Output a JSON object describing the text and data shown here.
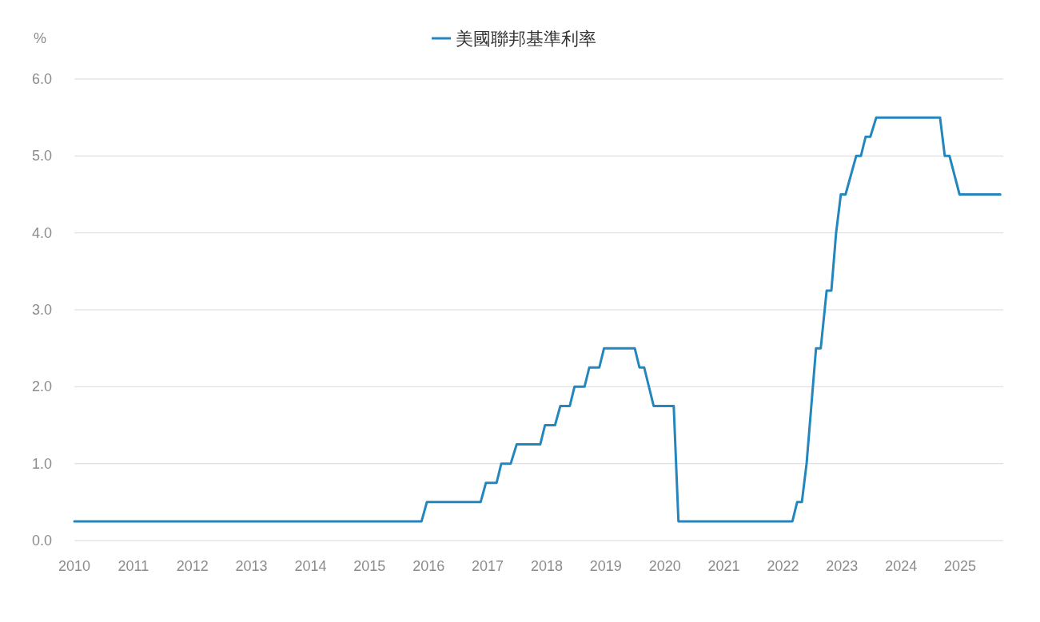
{
  "chart_data": {
    "type": "line",
    "ylabel": "%",
    "legend": "top",
    "grid": "y",
    "line_style": "solid",
    "xlim": [
      2010,
      2025.73
    ],
    "xticks": [
      2010,
      2011,
      2012,
      2013,
      2014,
      2015,
      2016,
      2017,
      2018,
      2019,
      2020,
      2021,
      2022,
      2023,
      2024,
      2025
    ],
    "ylim": [
      0,
      6
    ],
    "yticks": [
      {
        "value": 0,
        "label": "0.0"
      },
      {
        "value": 1,
        "label": "1.0"
      },
      {
        "value": 2,
        "label": "2.0"
      },
      {
        "value": 3,
        "label": "3.0"
      },
      {
        "value": 4,
        "label": "4.0"
      },
      {
        "value": 5,
        "label": "5.0"
      },
      {
        "value": 6,
        "label": "6.0"
      }
    ],
    "series": [
      {
        "name": "美國聯邦基準利率",
        "color": "#2386bd",
        "x": [
          2010.0,
          2015.88,
          2015.97,
          2016.88,
          2016.97,
          2017.15,
          2017.23,
          2017.39,
          2017.49,
          2017.89,
          2017.97,
          2018.14,
          2018.23,
          2018.39,
          2018.47,
          2018.64,
          2018.72,
          2018.89,
          2018.97,
          2019.49,
          2019.57,
          2019.65,
          2019.81,
          2020.15,
          2020.23,
          2022.16,
          2022.24,
          2022.32,
          2022.4,
          2022.56,
          2022.64,
          2022.74,
          2022.82,
          2022.9,
          2022.98,
          2023.06,
          2023.24,
          2023.32,
          2023.4,
          2023.48,
          2023.58,
          2024.66,
          2024.74,
          2024.82,
          2024.99,
          2025.68
        ],
        "values": [
          0.25,
          0.25,
          0.5,
          0.5,
          0.75,
          0.75,
          1.0,
          1.0,
          1.25,
          1.25,
          1.5,
          1.5,
          1.75,
          1.75,
          2.0,
          2.0,
          2.25,
          2.25,
          2.5,
          2.5,
          2.25,
          2.25,
          1.75,
          1.75,
          0.25,
          0.25,
          0.5,
          0.5,
          1.0,
          2.5,
          2.5,
          3.25,
          3.25,
          4.0,
          4.5,
          4.5,
          5.0,
          5.0,
          5.25,
          5.25,
          5.5,
          5.5,
          5.0,
          5.0,
          4.5,
          4.5
        ]
      }
    ]
  }
}
